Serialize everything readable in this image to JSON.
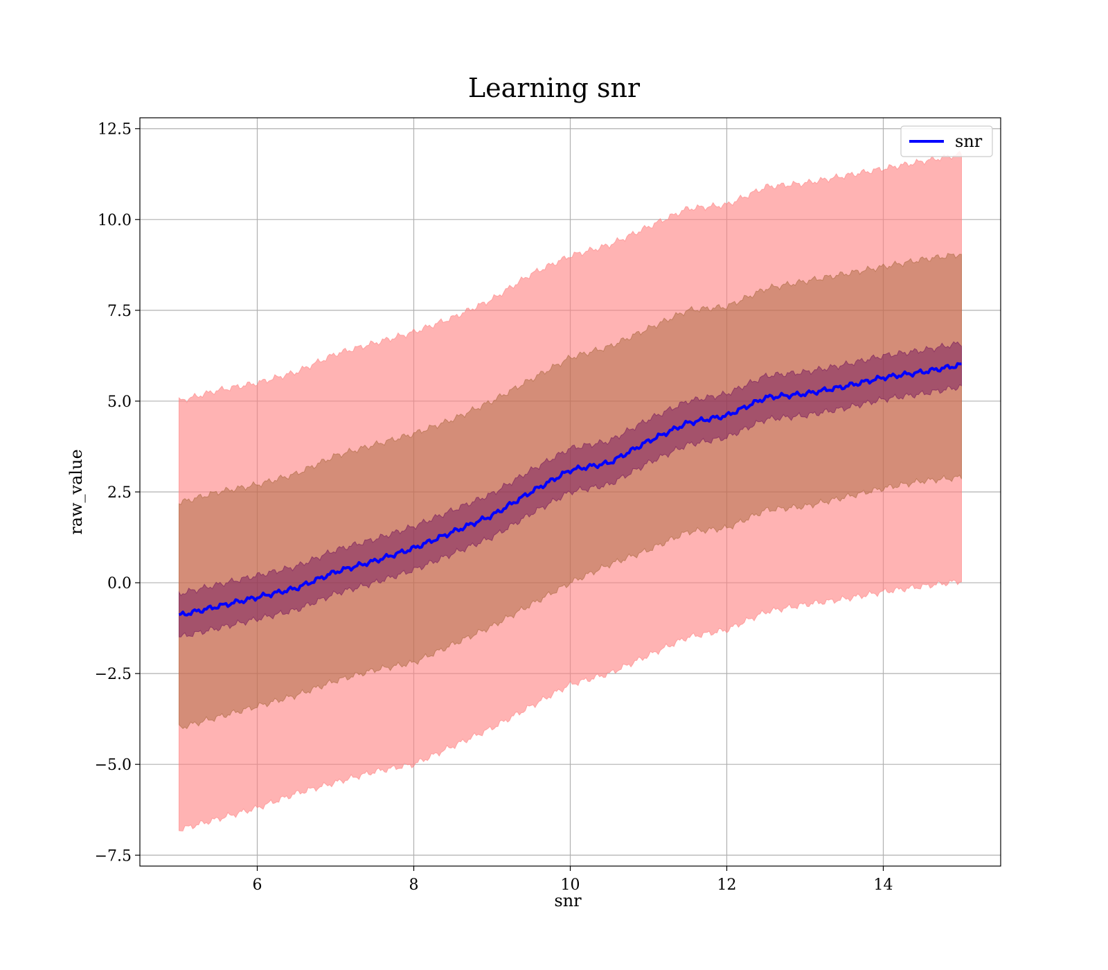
{
  "chart_data": {
    "type": "line",
    "title": "Learning snr",
    "xlabel": "snr",
    "ylabel": "raw_value",
    "xlim": [
      4.5,
      15.5
    ],
    "ylim": [
      -7.8,
      12.8
    ],
    "x_ticks": [
      6,
      8,
      10,
      12,
      14
    ],
    "x_tick_labels": [
      "6",
      "8",
      "10",
      "12",
      "14"
    ],
    "y_ticks": [
      -7.5,
      -5.0,
      -2.5,
      0.0,
      2.5,
      5.0,
      7.5,
      10.0,
      12.5
    ],
    "y_tick_labels": [
      "−7.5",
      "−5.0",
      "−2.5",
      "0.0",
      "2.5",
      "5.0",
      "7.5",
      "10.0",
      "12.5"
    ],
    "grid": true,
    "legend": {
      "position": "upper right",
      "entries": [
        "snr"
      ]
    },
    "colors": {
      "line": "#0000ff",
      "outer_band": "#ff8080",
      "middle_band": "#a06030",
      "inner_band": "#6a0a5a"
    },
    "x": [
      5.0,
      5.5,
      6.0,
      6.5,
      7.0,
      7.5,
      8.0,
      8.5,
      9.0,
      9.5,
      10.0,
      10.5,
      11.0,
      11.5,
      12.0,
      12.5,
      13.0,
      13.5,
      14.0,
      14.5,
      15.0
    ],
    "series": [
      {
        "name": "snr",
        "mean": [
          -0.9,
          -0.65,
          -0.4,
          -0.15,
          0.3,
          0.6,
          0.95,
          1.4,
          1.85,
          2.5,
          3.1,
          3.3,
          3.9,
          4.4,
          4.6,
          5.1,
          5.2,
          5.4,
          5.65,
          5.8,
          6.0
        ],
        "band_outer": {
          "lower": [
            -6.8,
            -6.5,
            -6.2,
            -5.8,
            -5.5,
            -5.2,
            -5.0,
            -4.5,
            -4.0,
            -3.4,
            -2.8,
            -2.5,
            -2.0,
            -1.5,
            -1.3,
            -0.8,
            -0.6,
            -0.45,
            -0.25,
            -0.1,
            0.05
          ],
          "upper": [
            5.0,
            5.3,
            5.5,
            5.8,
            6.3,
            6.6,
            6.9,
            7.3,
            7.8,
            8.5,
            9.0,
            9.3,
            9.8,
            10.3,
            10.4,
            10.9,
            11.0,
            11.2,
            11.4,
            11.6,
            11.8
          ]
        },
        "band_middle": {
          "lower": [
            -4.0,
            -3.7,
            -3.4,
            -3.1,
            -2.7,
            -2.4,
            -2.2,
            -1.7,
            -1.2,
            -0.6,
            0.0,
            0.5,
            0.9,
            1.4,
            1.5,
            2.0,
            2.1,
            2.35,
            2.6,
            2.8,
            2.9
          ],
          "upper": [
            2.2,
            2.5,
            2.7,
            3.0,
            3.5,
            3.8,
            4.1,
            4.5,
            5.0,
            5.6,
            6.2,
            6.5,
            7.0,
            7.5,
            7.6,
            8.1,
            8.3,
            8.5,
            8.7,
            8.9,
            9.05
          ]
        },
        "band_inner": {
          "lower": [
            -1.5,
            -1.25,
            -1.0,
            -0.75,
            -0.3,
            0.0,
            0.35,
            0.8,
            1.25,
            1.9,
            2.5,
            2.7,
            3.3,
            3.8,
            4.0,
            4.5,
            4.6,
            4.8,
            5.05,
            5.2,
            5.4
          ],
          "upper": [
            -0.3,
            -0.05,
            0.2,
            0.45,
            0.9,
            1.2,
            1.55,
            2.0,
            2.45,
            3.1,
            3.7,
            3.9,
            4.5,
            5.0,
            5.2,
            5.7,
            5.8,
            6.0,
            6.25,
            6.4,
            6.6
          ]
        }
      }
    ]
  }
}
